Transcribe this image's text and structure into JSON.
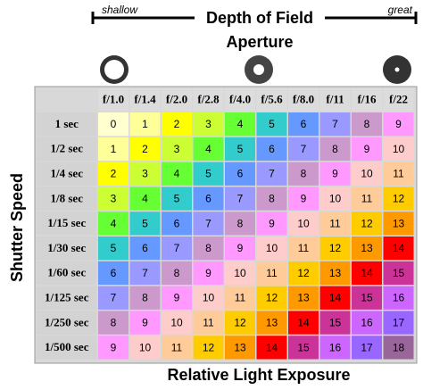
{
  "header": {
    "title": "Depth of Field",
    "left_label": "shallow",
    "right_label": "great",
    "subtitle": "Aperture"
  },
  "row_axis_label": "Shutter Speed",
  "footer": "Relative Light Exposure",
  "table": {
    "columns": [
      "f/1.0",
      "f/1.4",
      "f/2.0",
      "f/2.8",
      "f/4.0",
      "f/5.6",
      "f/8.0",
      "f/11",
      "f/16",
      "f/22"
    ],
    "rows": [
      {
        "label": "1 sec",
        "cells": [
          0,
          1,
          2,
          3,
          4,
          5,
          6,
          7,
          8,
          9
        ]
      },
      {
        "label": "1/2 sec",
        "cells": [
          1,
          2,
          3,
          4,
          5,
          6,
          7,
          8,
          9,
          10
        ]
      },
      {
        "label": "1/4 sec",
        "cells": [
          2,
          3,
          4,
          5,
          6,
          7,
          8,
          9,
          10,
          11
        ]
      },
      {
        "label": "1/8 sec",
        "cells": [
          3,
          4,
          5,
          6,
          7,
          8,
          9,
          10,
          11,
          12
        ]
      },
      {
        "label": "1/15 sec",
        "cells": [
          4,
          5,
          6,
          7,
          8,
          9,
          10,
          11,
          12,
          13
        ]
      },
      {
        "label": "1/30 sec",
        "cells": [
          5,
          6,
          7,
          8,
          9,
          10,
          11,
          12,
          13,
          14
        ]
      },
      {
        "label": "1/60 sec",
        "cells": [
          6,
          7,
          8,
          9,
          10,
          11,
          12,
          13,
          14,
          15
        ]
      },
      {
        "label": "1/125 sec",
        "cells": [
          7,
          8,
          9,
          10,
          11,
          12,
          13,
          14,
          15,
          16
        ]
      },
      {
        "label": "1/250 sec",
        "cells": [
          8,
          9,
          10,
          11,
          12,
          13,
          14,
          15,
          16,
          17
        ]
      },
      {
        "label": "1/500 sec",
        "cells": [
          9,
          10,
          11,
          12,
          13,
          14,
          15,
          16,
          17,
          18
        ]
      }
    ]
  },
  "cell_colors": [
    "#ffffd0",
    "#ffff99",
    "#ffff00",
    "#ccff33",
    "#66ff33",
    "#33cccc",
    "#6699ff",
    "#9999ff",
    "#cc99cc",
    "#ff99ff",
    "#ffcccc",
    "#ffcc99",
    "#ffcc00",
    "#ff9900",
    "#ff0000",
    "#cc3399",
    "#cc66ff",
    "#9966ff",
    "#996699"
  ]
}
